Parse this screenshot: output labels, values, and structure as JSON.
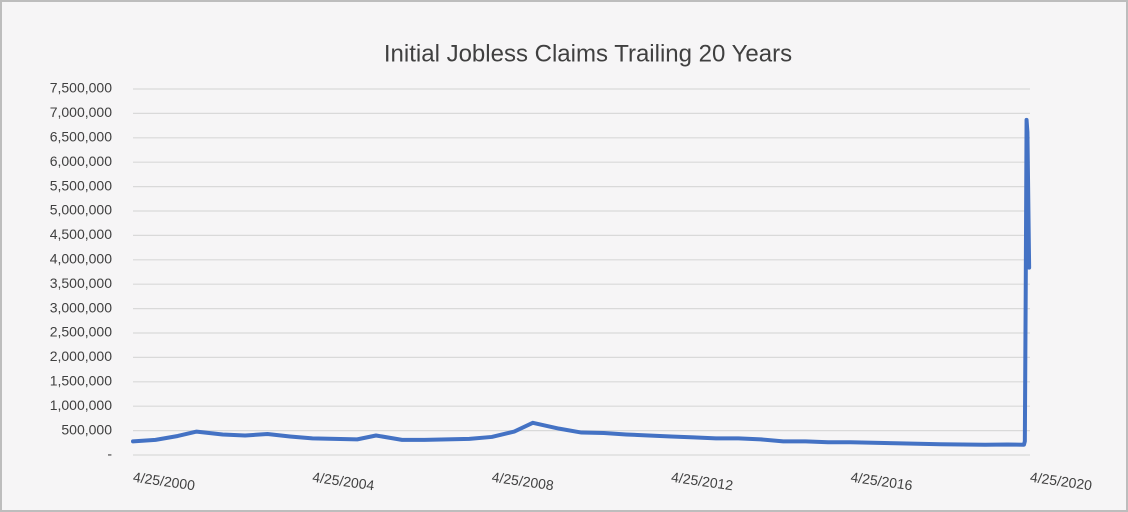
{
  "chart_data": {
    "type": "line",
    "title": "Initial Jobless Claims Trailing 20 Years",
    "x": [
      "2000-04-25",
      "2000-10-25",
      "2001-04-25",
      "2001-09-25",
      "2002-04-25",
      "2002-10-25",
      "2003-04-25",
      "2003-10-25",
      "2004-04-25",
      "2004-10-25",
      "2005-04-25",
      "2005-09-25",
      "2006-04-25",
      "2006-10-25",
      "2007-04-25",
      "2007-10-25",
      "2008-04-25",
      "2008-10-25",
      "2009-03-25",
      "2009-10-25",
      "2010-04-25",
      "2010-10-25",
      "2011-04-25",
      "2011-10-25",
      "2012-04-25",
      "2012-10-25",
      "2013-04-25",
      "2013-10-25",
      "2014-04-25",
      "2014-10-25",
      "2015-04-25",
      "2015-10-25",
      "2016-04-25",
      "2016-10-25",
      "2017-04-25",
      "2017-10-25",
      "2018-04-25",
      "2018-10-25",
      "2019-04-25",
      "2019-10-25",
      "2020-03-07",
      "2020-03-14",
      "2020-03-21",
      "2020-03-28",
      "2020-04-04",
      "2020-04-11",
      "2020-04-18"
    ],
    "series": [
      {
        "name": "Initial Jobless Claims",
        "color": "#4472c4",
        "values": [
          280000,
          310000,
          390000,
          480000,
          420000,
          400000,
          430000,
          380000,
          340000,
          330000,
          320000,
          400000,
          310000,
          310000,
          320000,
          330000,
          370000,
          480000,
          660000,
          540000,
          460000,
          450000,
          420000,
          400000,
          380000,
          360000,
          340000,
          340000,
          320000,
          280000,
          280000,
          260000,
          260000,
          250000,
          240000,
          230000,
          220000,
          215000,
          210000,
          215000,
          211000,
          282000,
          3307000,
          6867000,
          6615000,
          5237000,
          3839000
        ]
      }
    ],
    "xlim": [
      "2000-04-25",
      "2020-04-25"
    ],
    "xticks": [
      {
        "value": "2000-04-25",
        "label": "4/25/2000"
      },
      {
        "value": "2004-04-25",
        "label": "4/25/2004"
      },
      {
        "value": "2008-04-25",
        "label": "4/25/2008"
      },
      {
        "value": "2012-04-25",
        "label": "4/25/2012"
      },
      {
        "value": "2016-04-25",
        "label": "4/25/2016"
      },
      {
        "value": "2020-04-25",
        "label": "4/25/2020"
      }
    ],
    "ylim": [
      0,
      7500000
    ],
    "yticks": [
      {
        "value": 0,
        "label": "-"
      },
      {
        "value": 500000,
        "label": "500,000"
      },
      {
        "value": 1000000,
        "label": "1,000,000"
      },
      {
        "value": 1500000,
        "label": "1,500,000"
      },
      {
        "value": 2000000,
        "label": "2,000,000"
      },
      {
        "value": 2500000,
        "label": "2,500,000"
      },
      {
        "value": 3000000,
        "label": "3,000,000"
      },
      {
        "value": 3500000,
        "label": "3,500,000"
      },
      {
        "value": 4000000,
        "label": "4,000,000"
      },
      {
        "value": 4500000,
        "label": "4,500,000"
      },
      {
        "value": 5000000,
        "label": "5,000,000"
      },
      {
        "value": 5500000,
        "label": "5,500,000"
      },
      {
        "value": 6000000,
        "label": "6,000,000"
      },
      {
        "value": 6500000,
        "label": "6,500,000"
      },
      {
        "value": 7000000,
        "label": "7,000,000"
      },
      {
        "value": 7500000,
        "label": "7,500,000"
      }
    ],
    "grid": true
  }
}
